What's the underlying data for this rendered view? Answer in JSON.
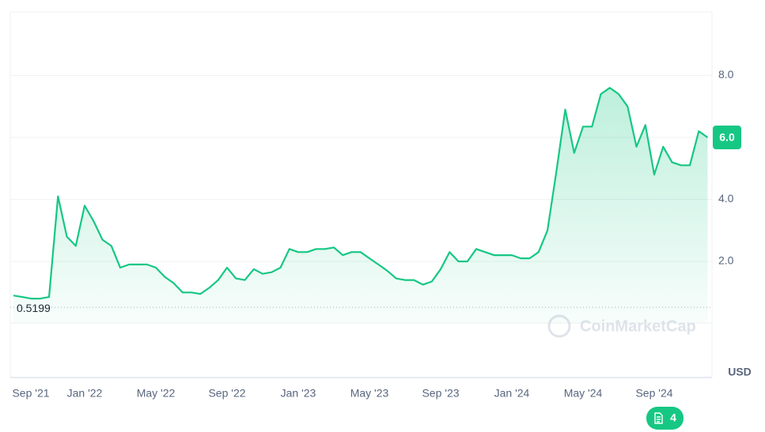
{
  "chart_data": {
    "type": "line",
    "categories": [
      "Sep '21",
      null,
      null,
      null,
      null,
      null,
      null,
      null,
      "Jan '22",
      null,
      null,
      null,
      null,
      null,
      null,
      null,
      "May '22",
      null,
      null,
      null,
      null,
      null,
      null,
      null,
      "Sep '22",
      null,
      null,
      null,
      null,
      null,
      null,
      null,
      "Jan '23",
      null,
      null,
      null,
      null,
      null,
      null,
      null,
      "May '23",
      null,
      null,
      null,
      null,
      null,
      null,
      null,
      "Sep '23",
      null,
      null,
      null,
      null,
      null,
      null,
      null,
      "Jan '24",
      null,
      null,
      null,
      null,
      null,
      null,
      null,
      "May '24",
      null,
      null,
      null,
      null,
      null,
      null,
      null,
      "Sep '24",
      null,
      null,
      null,
      null,
      null,
      null
    ],
    "values": [
      0.9,
      0.85,
      0.8,
      0.8,
      0.85,
      4.1,
      2.8,
      2.5,
      3.8,
      3.3,
      2.7,
      2.5,
      1.8,
      1.9,
      1.9,
      1.9,
      1.8,
      1.5,
      1.3,
      1.0,
      1.0,
      0.95,
      1.15,
      1.4,
      1.8,
      1.45,
      1.4,
      1.75,
      1.6,
      1.65,
      1.8,
      2.4,
      2.3,
      2.3,
      2.4,
      2.4,
      2.45,
      2.2,
      2.3,
      2.3,
      2.1,
      1.9,
      1.7,
      1.45,
      1.4,
      1.4,
      1.25,
      1.35,
      1.75,
      2.3,
      2.0,
      2.0,
      2.4,
      2.3,
      2.2,
      2.2,
      2.2,
      2.1,
      2.1,
      2.3,
      3.0,
      4.9,
      6.9,
      5.5,
      6.35,
      6.35,
      7.4,
      7.6,
      7.4,
      7.0,
      5.7,
      6.4,
      4.8,
      5.7,
      5.2,
      5.1,
      5.1,
      6.2,
      6.0
    ],
    "color": "#16c784",
    "ylim": [
      0,
      10
    ],
    "yticks": [
      {
        "value": 2,
        "label": "2.0"
      },
      {
        "value": 4,
        "label": "4.0"
      },
      {
        "value": 6,
        "label": "6.0"
      },
      {
        "value": 8,
        "label": "8.0"
      }
    ],
    "grid": true,
    "last_value_label": "6.0",
    "reference_line": 0.5199,
    "unit": "USD",
    "watermark": "CoinMarketCap",
    "notes_badge": 4
  }
}
